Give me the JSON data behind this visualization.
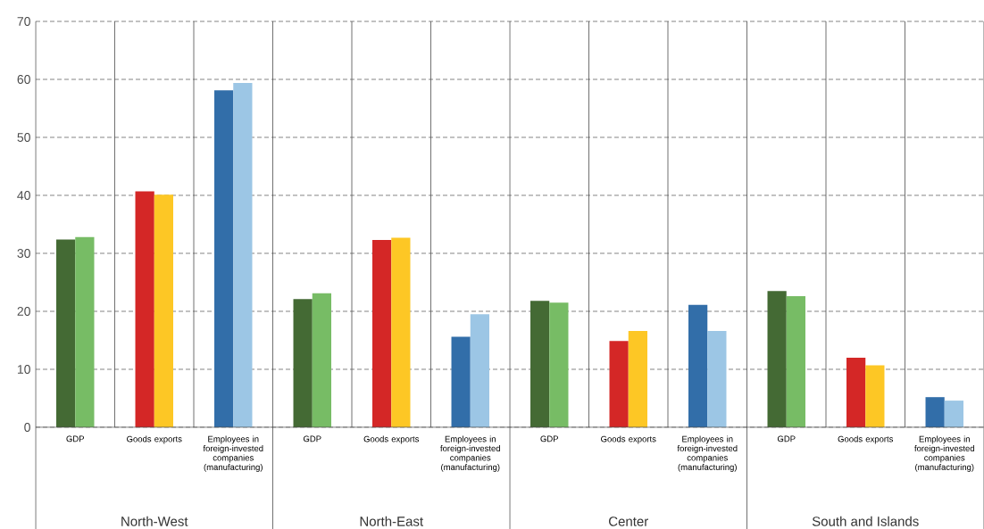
{
  "chart_data": {
    "type": "bar",
    "categories": [
      "GDP",
      "Goods exports",
      "Employees in foreign-invested companies (manufacturing)",
      "GDP",
      "Goods exports",
      "Employees in foreign-invested companies (manufacturing)",
      "GDP",
      "Goods exports",
      "Employees in foreign-invested companies (manufacturing)",
      "GDP",
      "Goods exports",
      "Employees in foreign-invested companies (manufacturing)"
    ],
    "series": [
      {
        "values": [
          32.4,
          40.7,
          58.1,
          22.1,
          32.3,
          15.6,
          21.8,
          14.9,
          21.1,
          23.5,
          12.0,
          5.2
        ],
        "colors": [
          "#446a34",
          "#d42726",
          "#326ea9",
          "#446a34",
          "#d42726",
          "#326ea9",
          "#446a34",
          "#d42726",
          "#326ea9",
          "#446a34",
          "#d42726",
          "#326ea9"
        ]
      },
      {
        "values": [
          32.8,
          40.1,
          59.4,
          23.1,
          32.7,
          19.5,
          21.5,
          16.6,
          16.6,
          22.6,
          10.7,
          4.6
        ],
        "colors": [
          "#77bc65",
          "#fdc725",
          "#9cc6e5",
          "#77bc65",
          "#fdc725",
          "#9cc6e5",
          "#77bc65",
          "#fdc725",
          "#9cc6e5",
          "#77bc65",
          "#fdc725",
          "#9cc6e5"
        ]
      }
    ],
    "ylim": [
      0,
      70
    ],
    "yticks": [
      0,
      10,
      20,
      30,
      40,
      50,
      60,
      70
    ],
    "grid": "y",
    "annotations": [
      "North-West",
      "North-East",
      "Center",
      "South and Islands"
    ]
  }
}
